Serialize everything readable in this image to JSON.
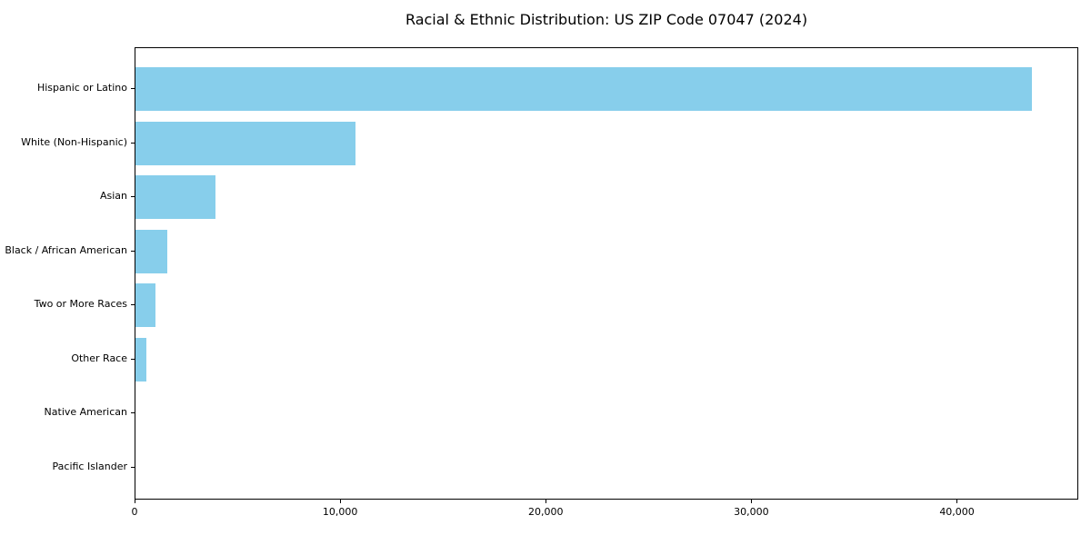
{
  "title": "Racial & Ethnic Distribution: US ZIP Code 07047 (2024)",
  "colors": {
    "bar": "#87CEEB",
    "axis": "#000000",
    "background": "#FFFFFF",
    "text": "#000000"
  },
  "chart_data": {
    "type": "bar",
    "orientation": "horizontal",
    "title": "Racial & Ethnic Distribution: US ZIP Code 07047 (2024)",
    "categories": [
      "Hispanic or Latino",
      "White (Non-Hispanic)",
      "Asian",
      "Black / African American",
      "Two or More Races",
      "Other Race",
      "Native American",
      "Pacific Islander"
    ],
    "values": [
      43600,
      10700,
      3900,
      1550,
      970,
      530,
      0,
      0
    ],
    "xlabel": "",
    "ylabel": "",
    "xlim": [
      0,
      45900
    ],
    "xticks": [
      0,
      10000,
      20000,
      30000,
      40000
    ],
    "xtick_labels": [
      "0",
      "10,000",
      "20,000",
      "30,000",
      "40,000"
    ],
    "grid": false,
    "legend": false,
    "bar_color": "#87CEEB"
  }
}
